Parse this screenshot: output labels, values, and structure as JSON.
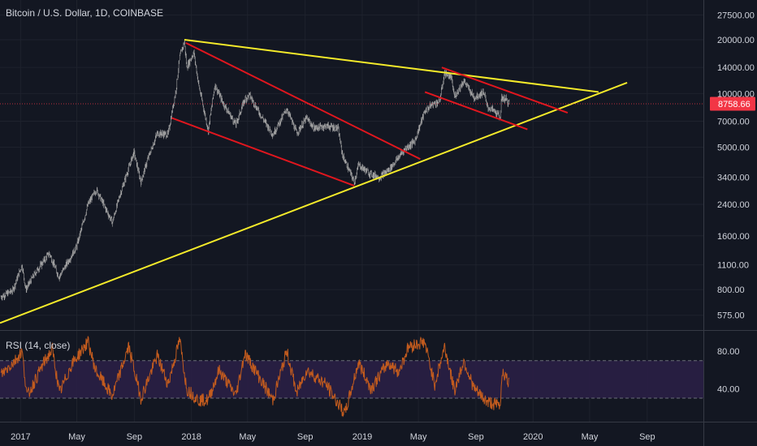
{
  "header": {
    "title": "Bitcoin / U.S. Dollar, 1D, COINBASE"
  },
  "rsi": {
    "label": "RSI (14, close)",
    "levels": [
      "80.00",
      "40.00"
    ],
    "upper_band": 70,
    "lower_band": 30
  },
  "last_price": {
    "label": "8758.66",
    "value": 8758.66,
    "color": "#f23645"
  },
  "colors": {
    "background": "#131722",
    "candles": "#a8a8a8",
    "trendline_yellow": "#f5eb2a",
    "channel_red": "#e0161e",
    "rsi_line": "#c25b1e",
    "rsi_band_fill": "#2a1f45",
    "grid": "#1e222d"
  },
  "chart_data": [
    {
      "type": "line",
      "title": "Bitcoin / U.S. Dollar, 1D, COINBASE",
      "y_scale": "log",
      "ylim": [
        480,
        32000
      ],
      "x_range": [
        "2016-11-18",
        "2020-12-30"
      ],
      "x_tick_labels": [
        "2017",
        "May",
        "Sep",
        "2018",
        "May",
        "Sep",
        "2019",
        "May",
        "Sep",
        "2020",
        "May",
        "Sep"
      ],
      "x_tick_dates": [
        "2017-01-01",
        "2017-05-01",
        "2017-09-01",
        "2018-01-01",
        "2018-05-01",
        "2018-09-01",
        "2019-01-01",
        "2019-05-01",
        "2019-09-01",
        "2020-01-01",
        "2020-05-01",
        "2020-09-01"
      ],
      "y_tick_labels": [
        "27500.00",
        "20000.00",
        "14000.00",
        "10000.00",
        "7000.00",
        "5000.00",
        "3400.00",
        "2400.00",
        "1600.00",
        "1100.00",
        "800.00",
        "575.00"
      ],
      "y_tick_values": [
        27500,
        20000,
        14000,
        10000,
        7000,
        5000,
        3400,
        2400,
        1600,
        1100,
        800,
        575
      ],
      "series": [
        {
          "points": [
            [
              "2016-11-20",
              730
            ],
            [
              "2016-12-15",
              790
            ],
            [
              "2017-01-04",
              1100
            ],
            [
              "2017-01-12",
              800
            ],
            [
              "2017-02-01",
              990
            ],
            [
              "2017-03-03",
              1280
            ],
            [
              "2017-03-24",
              940
            ],
            [
              "2017-04-15",
              1180
            ],
            [
              "2017-05-01",
              1400
            ],
            [
              "2017-05-25",
              2400
            ],
            [
              "2017-06-12",
              2900
            ],
            [
              "2017-07-16",
              1900
            ],
            [
              "2017-08-01",
              2700
            ],
            [
              "2017-08-31",
              4700
            ],
            [
              "2017-09-15",
              3200
            ],
            [
              "2017-10-01",
              4400
            ],
            [
              "2017-10-20",
              6000
            ],
            [
              "2017-11-12",
              5900
            ],
            [
              "2017-11-29",
              10500
            ],
            [
              "2017-12-07",
              16000
            ],
            [
              "2017-12-17",
              19500
            ],
            [
              "2017-12-22",
              14000
            ],
            [
              "2018-01-06",
              17000
            ],
            [
              "2018-01-17",
              11000
            ],
            [
              "2018-02-06",
              6200
            ],
            [
              "2018-02-20",
              11200
            ],
            [
              "2018-03-10",
              8800
            ],
            [
              "2018-04-06",
              6700
            ],
            [
              "2018-04-25",
              9300
            ],
            [
              "2018-05-05",
              9800
            ],
            [
              "2018-05-30",
              7500
            ],
            [
              "2018-06-24",
              5900
            ],
            [
              "2018-07-24",
              8200
            ],
            [
              "2018-08-14",
              6000
            ],
            [
              "2018-09-04",
              7300
            ],
            [
              "2018-09-20",
              6400
            ],
            [
              "2018-10-15",
              6600
            ],
            [
              "2018-11-10",
              6400
            ],
            [
              "2018-11-20",
              4500
            ],
            [
              "2018-12-15",
              3200
            ],
            [
              "2018-12-24",
              4000
            ],
            [
              "2019-01-15",
              3600
            ],
            [
              "2019-02-07",
              3400
            ],
            [
              "2019-03-01",
              3800
            ],
            [
              "2019-04-02",
              4900
            ],
            [
              "2019-04-23",
              5400
            ],
            [
              "2019-05-14",
              7900
            ],
            [
              "2019-05-30",
              8700
            ],
            [
              "2019-06-15",
              9000
            ],
            [
              "2019-06-26",
              13000
            ],
            [
              "2019-07-10",
              12300
            ],
            [
              "2019-07-17",
              9600
            ],
            [
              "2019-08-06",
              11800
            ],
            [
              "2019-08-28",
              9500
            ],
            [
              "2019-09-18",
              10200
            ],
            [
              "2019-09-25",
              8400
            ],
            [
              "2019-10-07",
              8100
            ],
            [
              "2019-10-23",
              7400
            ],
            [
              "2019-10-26",
              9500
            ],
            [
              "2019-11-04",
              9300
            ],
            [
              "2019-11-11",
              8758.66
            ]
          ]
        }
      ]
    },
    {
      "type": "line",
      "title": "RSI (14, close)",
      "ylim": [
        5,
        100
      ],
      "y_tick_labels": [
        "80.00",
        "40.00"
      ],
      "y_tick_values": [
        80,
        40
      ],
      "bands": [
        30,
        70
      ],
      "series": [
        {
          "points": [
            [
              "2016-11-20",
              55
            ],
            [
              "2016-12-20",
              70
            ],
            [
              "2017-01-04",
              80
            ],
            [
              "2017-01-15",
              32
            ],
            [
              "2017-02-20",
              68
            ],
            [
              "2017-03-10",
              82
            ],
            [
              "2017-03-25",
              35
            ],
            [
              "2017-04-20",
              66
            ],
            [
              "2017-05-25",
              90
            ],
            [
              "2017-06-10",
              60
            ],
            [
              "2017-07-16",
              32
            ],
            [
              "2017-08-20",
              85
            ],
            [
              "2017-09-15",
              30
            ],
            [
              "2017-10-20",
              75
            ],
            [
              "2017-11-12",
              45
            ],
            [
              "2017-12-07",
              92
            ],
            [
              "2017-12-22",
              40
            ],
            [
              "2018-01-16",
              28
            ],
            [
              "2018-02-06",
              28
            ],
            [
              "2018-03-01",
              60
            ],
            [
              "2018-04-06",
              33
            ],
            [
              "2018-04-25",
              78
            ],
            [
              "2018-06-24",
              28
            ],
            [
              "2018-07-24",
              80
            ],
            [
              "2018-08-14",
              35
            ],
            [
              "2018-09-04",
              60
            ],
            [
              "2018-10-15",
              45
            ],
            [
              "2018-11-25",
              13
            ],
            [
              "2018-12-24",
              68
            ],
            [
              "2019-01-20",
              40
            ],
            [
              "2019-02-25",
              68
            ],
            [
              "2019-03-20",
              58
            ],
            [
              "2019-04-10",
              85
            ],
            [
              "2019-05-14",
              90
            ],
            [
              "2019-06-05",
              45
            ],
            [
              "2019-06-26",
              85
            ],
            [
              "2019-07-17",
              38
            ],
            [
              "2019-08-06",
              70
            ],
            [
              "2019-08-28",
              40
            ],
            [
              "2019-09-25",
              26
            ],
            [
              "2019-10-23",
              22
            ],
            [
              "2019-10-27",
              60
            ],
            [
              "2019-11-11",
              45
            ]
          ]
        }
      ]
    }
  ],
  "drawings": {
    "yellow_lines": [
      {
        "from": [
          "2017-12-17",
          20000
        ],
        "to": [
          "2020-05-20",
          10200
        ]
      },
      {
        "from": [
          "2016-11-18",
          520
        ],
        "to": [
          "2020-07-20",
          11500
        ]
      }
    ],
    "red_lines": [
      {
        "from": [
          "2017-12-20",
          19200
        ],
        "to": [
          "2019-05-05",
          4300
        ]
      },
      {
        "from": [
          "2017-11-20",
          7300
        ],
        "to": [
          "2018-12-15",
          3050
        ]
      },
      {
        "from": [
          "2019-06-20",
          14000
        ],
        "to": [
          "2020-03-15",
          7800
        ]
      },
      {
        "from": [
          "2019-05-15",
          10200
        ],
        "to": [
          "2019-12-20",
          6300
        ]
      }
    ]
  }
}
